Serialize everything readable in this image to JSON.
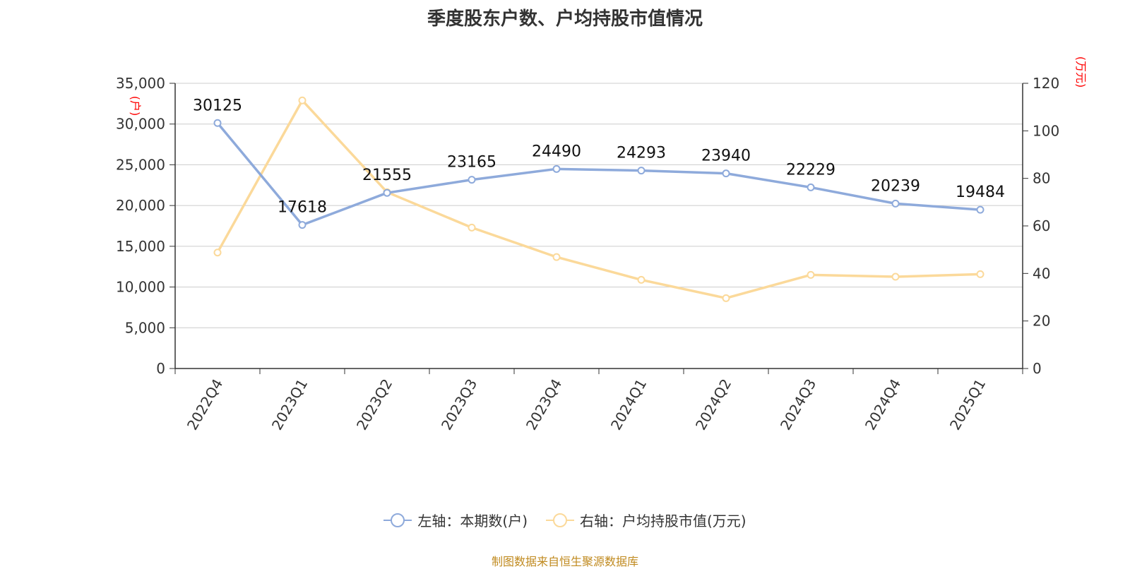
{
  "chart_data": {
    "type": "line",
    "title": "季度股东户数、户均持股市值情况",
    "categories": [
      "2022Q4",
      "2023Q1",
      "2023Q2",
      "2023Q3",
      "2023Q4",
      "2024Q1",
      "2024Q2",
      "2024Q3",
      "2024Q4",
      "2025Q1"
    ],
    "series": [
      {
        "name": "左轴：本期数(户)",
        "axis": "left",
        "color": "#8eaadb",
        "values": [
          30125,
          17618,
          21555,
          23165,
          24490,
          24293,
          23940,
          22229,
          20239,
          19484
        ],
        "labels_shown": true
      },
      {
        "name": "右轴：户均持股市值(万元)",
        "axis": "right",
        "color": "#fbd99a",
        "values": [
          48.8,
          112.8,
          74.2,
          59.3,
          46.9,
          37.3,
          29.6,
          39.4,
          38.6,
          39.7
        ],
        "labels_shown": false
      }
    ],
    "left_axis": {
      "unit_label": "(户)",
      "ylim": [
        0,
        35000
      ],
      "ticks": [
        "0",
        "5,000",
        "10,000",
        "15,000",
        "20,000",
        "25,000",
        "30,000",
        "35,000"
      ]
    },
    "right_axis": {
      "unit_label": "(万元)",
      "ylim": [
        0,
        120
      ],
      "ticks": [
        "0",
        "20",
        "40",
        "60",
        "80",
        "100",
        "120"
      ]
    },
    "grid": true,
    "legend_position": "bottom-center"
  },
  "source_text": "制图数据来自恒生聚源数据库",
  "colors": {
    "axis": "#333333",
    "grid": "#cccccc",
    "unit_label": "#ff0000",
    "source": "#c08a1f"
  }
}
